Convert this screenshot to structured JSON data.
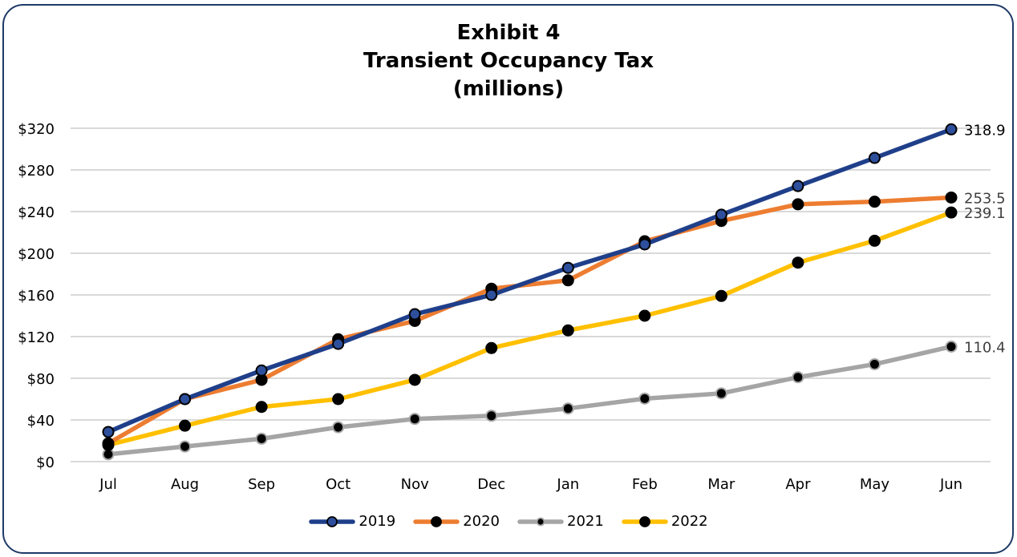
{
  "chart_data": {
    "type": "line",
    "title_lines": [
      "Exhibit 4",
      "Transient Occupancy Tax",
      "(millions)"
    ],
    "categories": [
      "Jul",
      "Aug",
      "Sep",
      "Oct",
      "Nov",
      "Dec",
      "Jan",
      "Feb",
      "Mar",
      "Apr",
      "May",
      "Jun"
    ],
    "y_ticks": [
      "$0",
      "$40",
      "$80",
      "$120",
      "$160",
      "$200",
      "$240",
      "$280",
      "$320"
    ],
    "y_tick_values": [
      0,
      40,
      80,
      120,
      160,
      200,
      240,
      280,
      320
    ],
    "ylim": [
      0,
      320
    ],
    "xlabel": "",
    "ylabel": "",
    "grid": "horizontal",
    "legend_position": "bottom",
    "series": [
      {
        "name": "2019",
        "color": "#1f3f8a",
        "marker_fill": "#2e4f9c",
        "marker_stroke": "#000000",
        "label_color": "#000000",
        "values": [
          28.5,
          60,
          87.5,
          113,
          141.5,
          160,
          186,
          208.5,
          237,
          264.5,
          291.5,
          318.9
        ],
        "end_label": "318.9"
      },
      {
        "name": "2020",
        "color": "#ed7d31",
        "marker_fill": "#000000",
        "marker_stroke": "#000000",
        "label_color": "#404040",
        "values": [
          17.5,
          60,
          78.5,
          117.5,
          135,
          166,
          174,
          211.5,
          231,
          247,
          249.5,
          253.5
        ],
        "end_label": "253.5"
      },
      {
        "name": "2021",
        "color": "#a5a5a5",
        "marker_fill": "#000000",
        "marker_stroke": "#a5a5a5",
        "label_color": "#404040",
        "values": [
          7,
          14.5,
          22,
          33,
          41,
          44,
          51,
          60.5,
          65.5,
          81,
          93.5,
          110.4
        ],
        "end_label": "110.4"
      },
      {
        "name": "2022",
        "color": "#ffc000",
        "marker_fill": "#000000",
        "marker_stroke": "#000000",
        "label_color": "#404040",
        "values": [
          16,
          34.5,
          52.5,
          60,
          78.5,
          109,
          126,
          140,
          159,
          191,
          212,
          239.1
        ],
        "end_label": "239.1"
      }
    ]
  }
}
